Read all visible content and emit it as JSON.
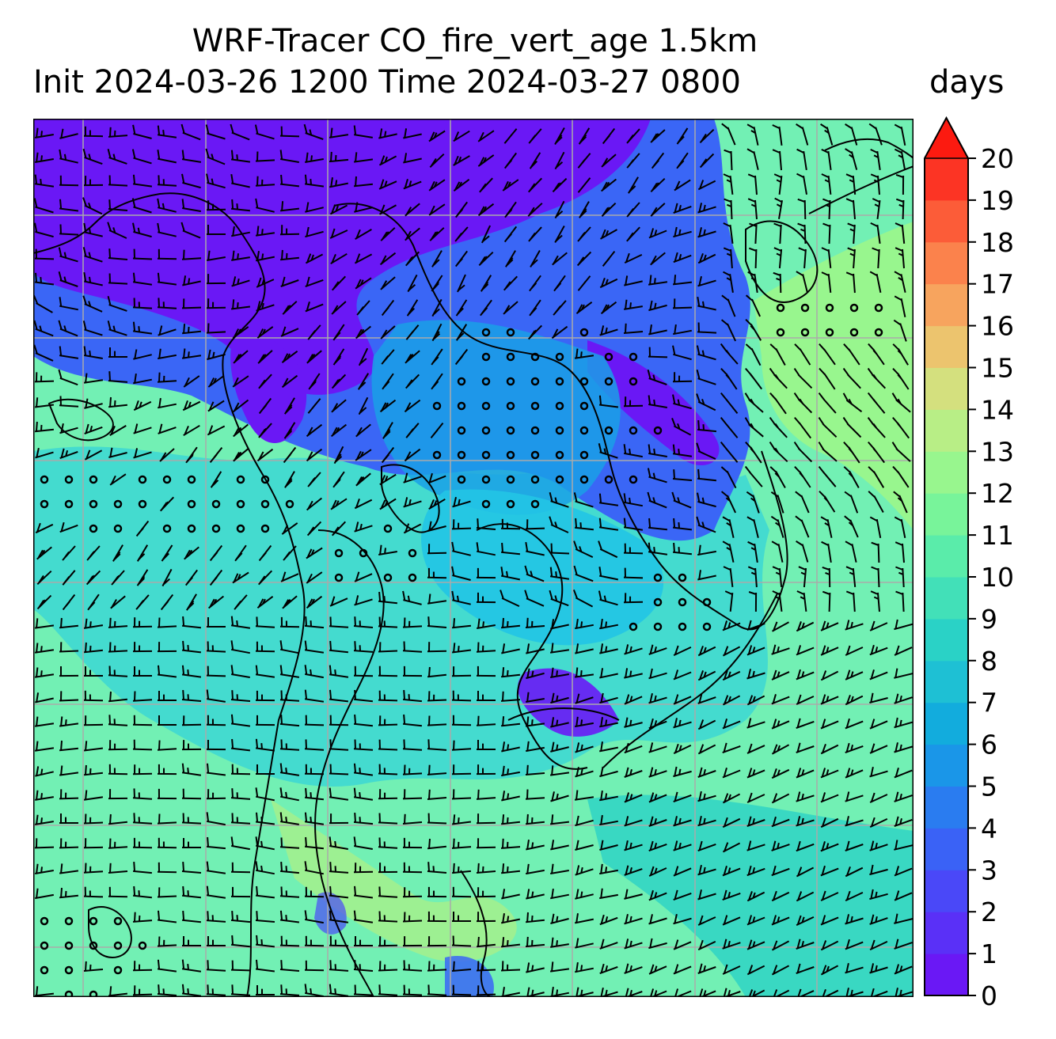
{
  "title_line1": "WRF-Tracer CO_fire_vert_age 1.5km",
  "title_line2": "Init 2024-03-26 1200 Time 2024-03-27 0800",
  "colorbar": {
    "unit": "days",
    "min": 0,
    "max": 20,
    "step": 1,
    "extend": "max",
    "ticks": [
      "0",
      "1",
      "2",
      "3",
      "4",
      "5",
      "6",
      "7",
      "8",
      "9",
      "10",
      "11",
      "12",
      "13",
      "14",
      "15",
      "16",
      "17",
      "18",
      "19",
      "20"
    ],
    "colors": [
      "#6a18f5",
      "#5a30f7",
      "#4a48f8",
      "#3a62f6",
      "#2a7cf0",
      "#1a96e8",
      "#12acdd",
      "#1ec0d4",
      "#2ad2c6",
      "#42e0b8",
      "#5aecaa",
      "#78f49a",
      "#98f68e",
      "#b8ee86",
      "#d4e07e",
      "#ecc46e",
      "#f7a45e",
      "#fb824c",
      "#fc5c38",
      "#fc3424"
    ],
    "over_color": "#fc1a10"
  },
  "map": {
    "gridlines": "gray",
    "coastlines": "black",
    "overlay": "wind barbs"
  }
}
